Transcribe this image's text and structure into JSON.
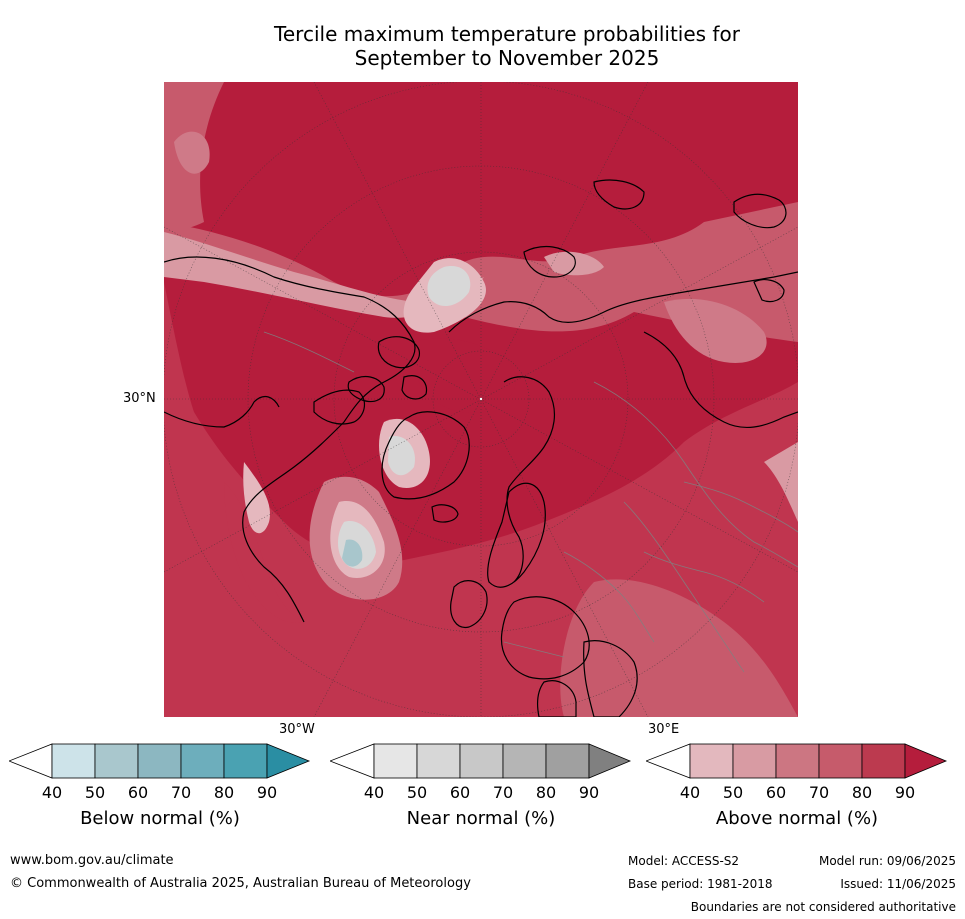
{
  "title": {
    "line1": "Tercile maximum temperature probabilities for",
    "line2": "September to November 2025"
  },
  "map": {
    "lat_label": "30°N",
    "lon_labels": [
      "30°W",
      "30°E"
    ],
    "colors": {
      "above_90": "#b51d3c",
      "above_80": "#c0354f",
      "above_70": "#c75a6c",
      "above_60": "#cf7a88",
      "above_50": "#d99aa3",
      "above_40": "#e5b8be",
      "near": "#d8d8d8",
      "below_50": "#a8c6cc",
      "land_outline": "#000000",
      "border": "#808080"
    }
  },
  "colorbars": [
    {
      "name": "below-normal",
      "label": "Below normal (%)",
      "ticks": [
        "40",
        "50",
        "60",
        "70",
        "80",
        "90"
      ],
      "colors": [
        "#cde3e9",
        "#a9c7cd",
        "#8cb7c1",
        "#6daebc",
        "#4aa2b2",
        "#2a8ea3"
      ]
    },
    {
      "name": "near-normal",
      "label": "Near normal (%)",
      "ticks": [
        "40",
        "50",
        "60",
        "70",
        "80",
        "90"
      ],
      "colors": [
        "#e6e6e6",
        "#d7d7d7",
        "#c8c8c8",
        "#b5b5b5",
        "#a0a0a0",
        "#808080"
      ]
    },
    {
      "name": "above-normal",
      "label": "Above normal (%)",
      "ticks": [
        "40",
        "50",
        "60",
        "70",
        "80",
        "90"
      ],
      "colors": [
        "#e3b8be",
        "#d89ba3",
        "#cc7682",
        "#c65b6b",
        "#bc3a4f",
        "#b51d3c"
      ]
    }
  ],
  "footer": {
    "website": "www.bom.gov.au/climate",
    "copyright": "© Commonwealth of Australia 2025, Australian Bureau of Meteorology",
    "model": "Model: ACCESS-S2",
    "base_period": "Base period: 1981-2018",
    "model_run": "Model run: 09/06/2025",
    "issued": "Issued: 11/06/2025",
    "disclaimer": "Boundaries are not considered authoritative"
  }
}
